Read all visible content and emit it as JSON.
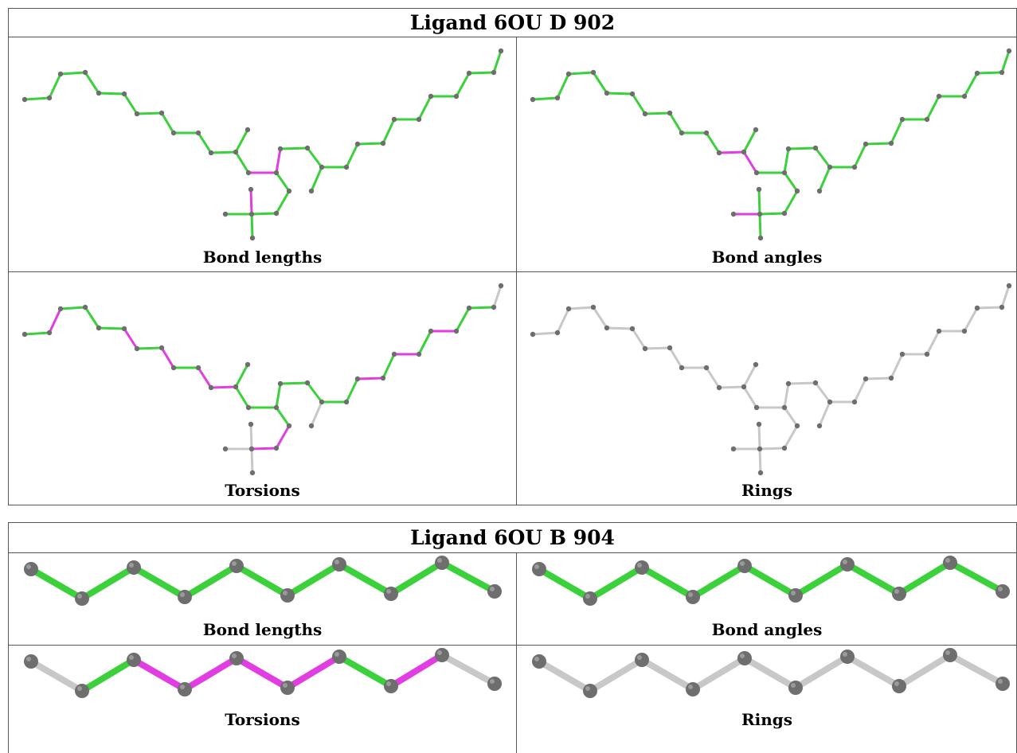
{
  "colors": {
    "good": "#3ad13a",
    "outlier": "#e23de2",
    "none": "#c8c8c8",
    "atom": "#6e6e6e",
    "border": "#555555"
  },
  "table1": {
    "title": "Ligand 6OU D 902",
    "panels": [
      {
        "caption": "Bond lengths"
      },
      {
        "caption": "Bond angles"
      },
      {
        "caption": "Torsions"
      },
      {
        "caption": "Rings"
      }
    ]
  },
  "table2": {
    "title": "Ligand 6OU B 904",
    "panels": [
      {
        "caption": "Bond lengths"
      },
      {
        "caption": "Bond angles"
      },
      {
        "caption": "Torsions"
      },
      {
        "caption": "Rings"
      }
    ]
  },
  "chain_bond_colors": {
    "bond_lengths": [
      "good",
      "good",
      "good",
      "good",
      "good",
      "good",
      "good",
      "good",
      "good",
      "good"
    ],
    "bond_angles": [
      "good",
      "good",
      "good",
      "good",
      "good",
      "good",
      "good",
      "good",
      "good",
      "good"
    ],
    "torsions": [
      "none",
      "good",
      "outlier",
      "outlier",
      "outlier",
      "outlier",
      "good",
      "outlier",
      "none",
      "none"
    ],
    "rings": [
      "none",
      "none",
      "none",
      "none",
      "none",
      "none",
      "none",
      "none",
      "none",
      "none"
    ]
  }
}
